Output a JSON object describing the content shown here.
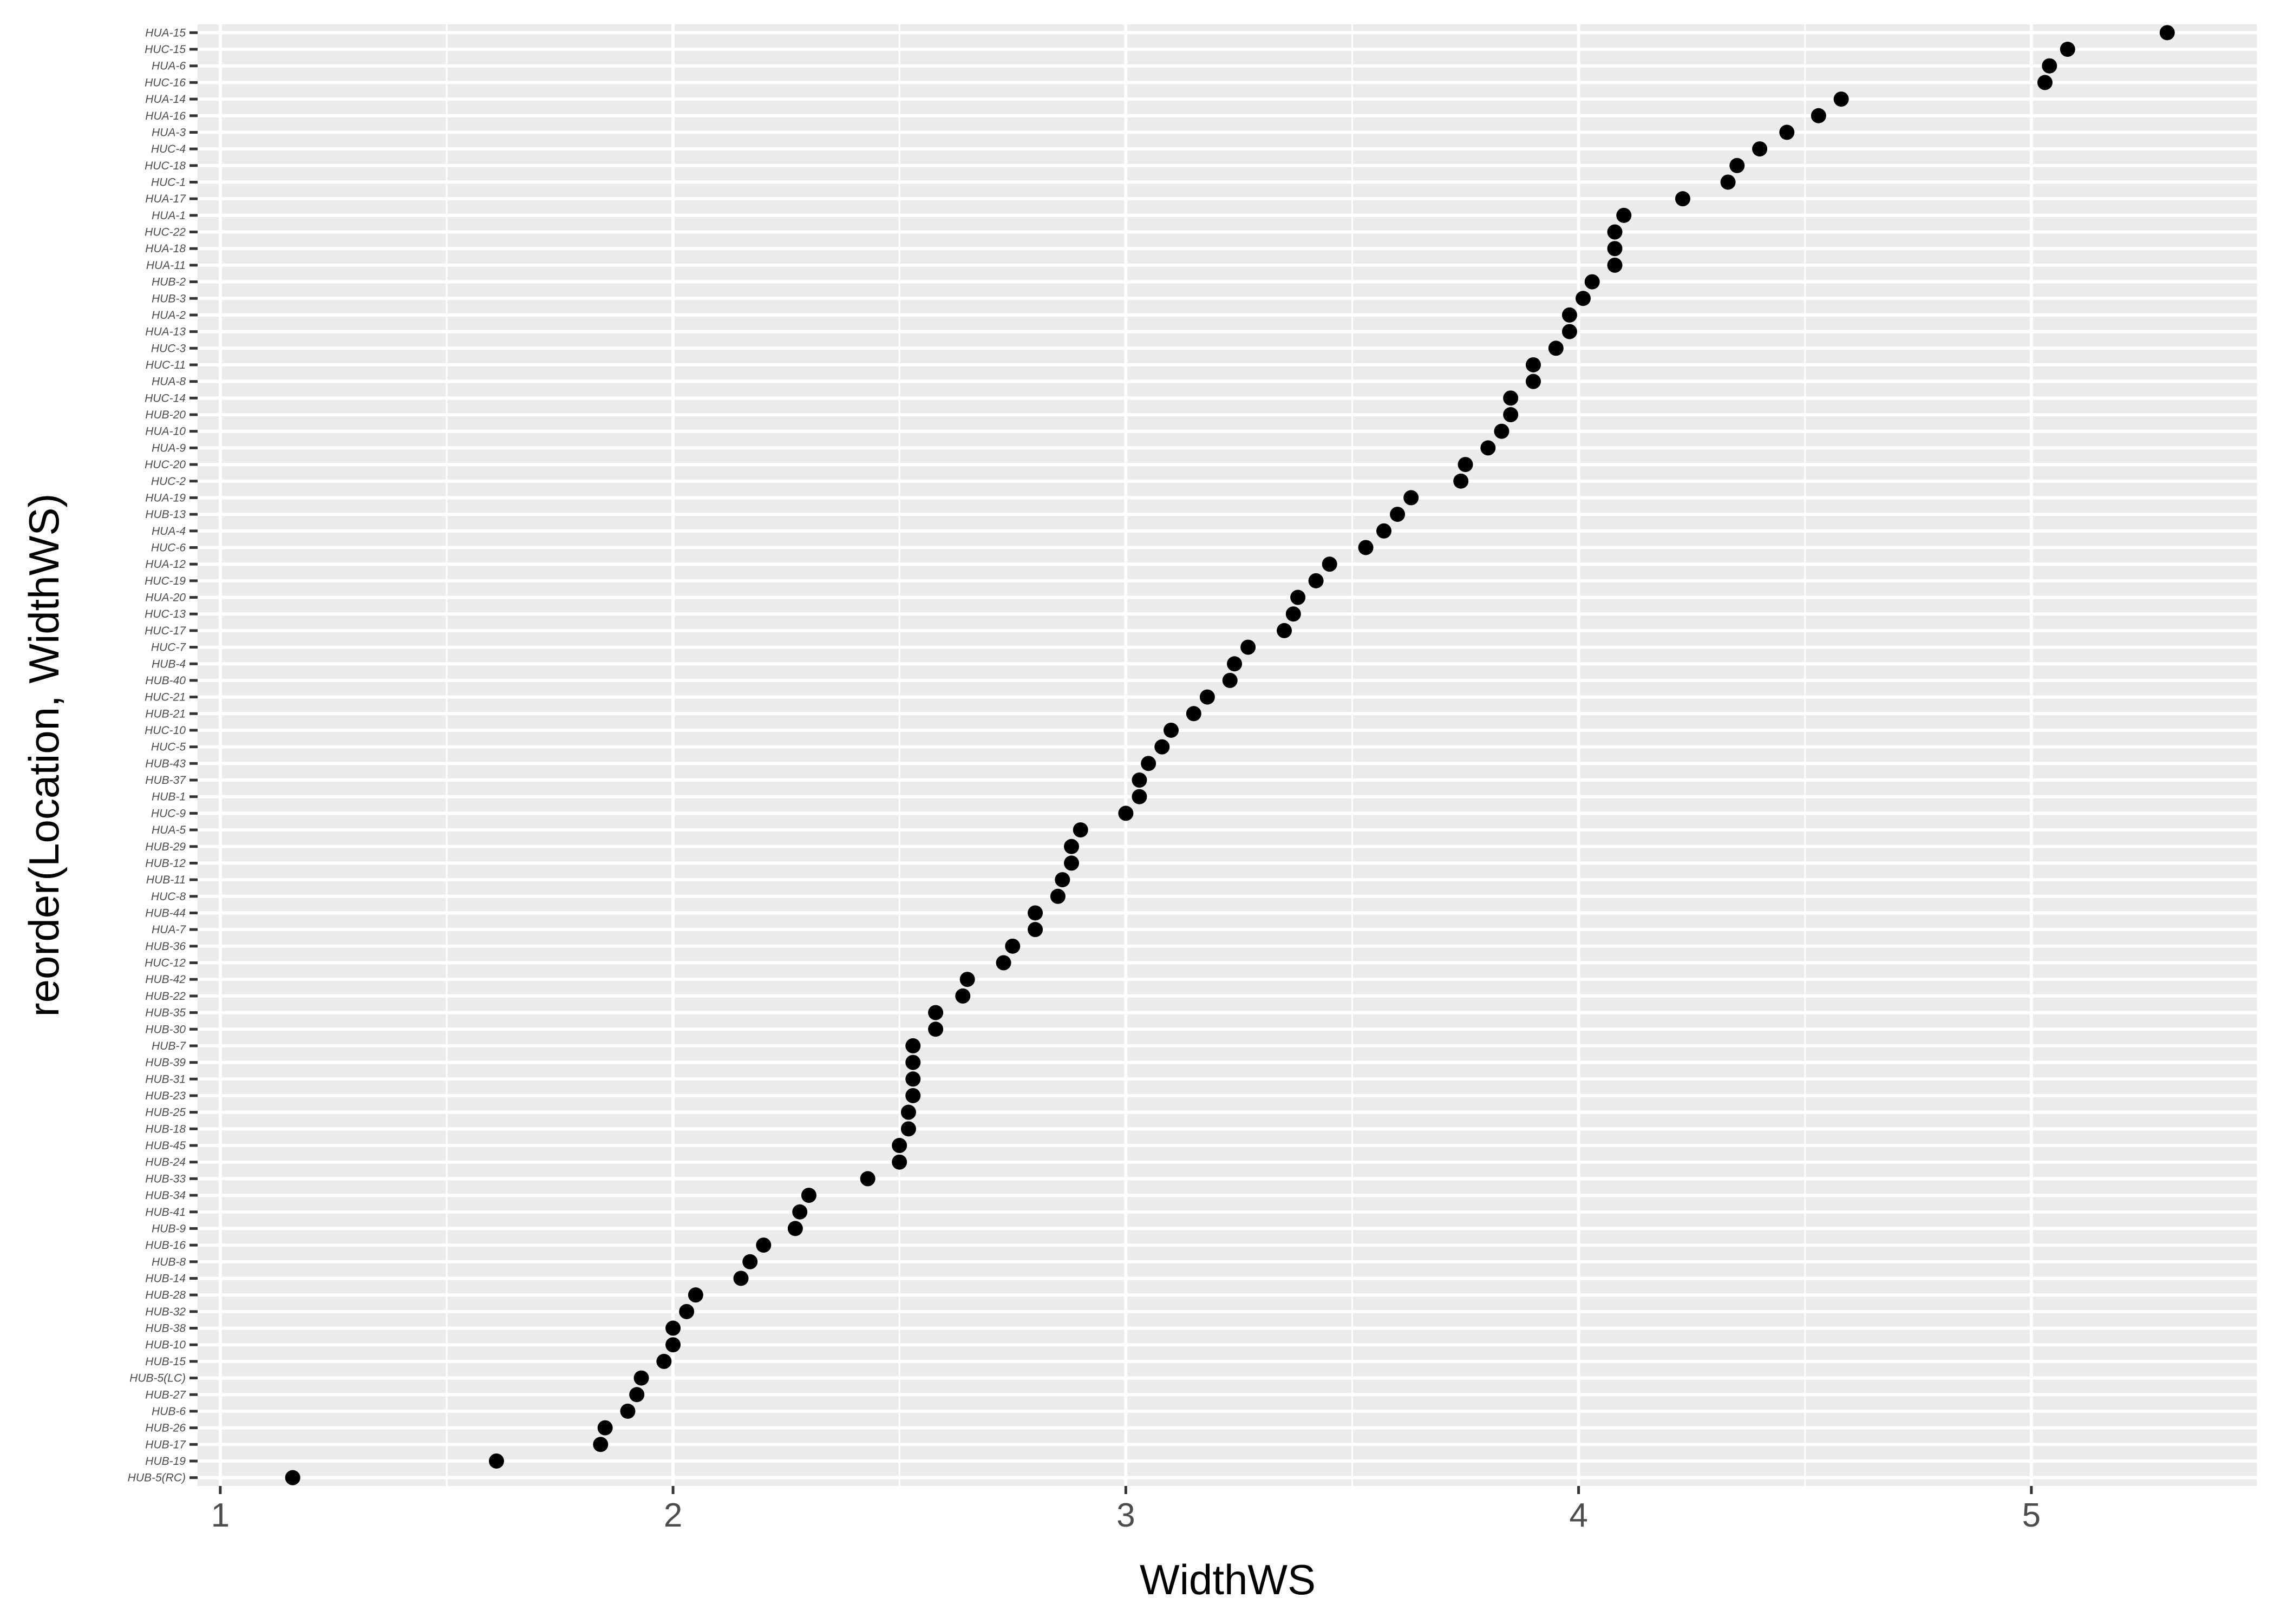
{
  "chart_data": {
    "type": "scatter",
    "xlabel": "WidthWS",
    "ylabel": "reorder(Location, WidthWS)",
    "xlim": [
      0.95,
      5.5
    ],
    "x_ticks": [
      1,
      2,
      3,
      4,
      5
    ],
    "grid": true,
    "colors": {
      "panel": "#ebebeb",
      "grid": "#ffffff",
      "point": "#000000"
    },
    "points": [
      {
        "category": "HUB-5(RC)",
        "value": 1.16
      },
      {
        "category": "HUB-19",
        "value": 1.61
      },
      {
        "category": "HUB-17",
        "value": 1.84
      },
      {
        "category": "HUB-26",
        "value": 1.85
      },
      {
        "category": "HUB-6",
        "value": 1.9
      },
      {
        "category": "HUB-27",
        "value": 1.92
      },
      {
        "category": "HUB-5(LC)",
        "value": 1.93
      },
      {
        "category": "HUB-15",
        "value": 1.98
      },
      {
        "category": "HUB-10",
        "value": 2.0
      },
      {
        "category": "HUB-38",
        "value": 2.0
      },
      {
        "category": "HUB-32",
        "value": 2.03
      },
      {
        "category": "HUB-28",
        "value": 2.05
      },
      {
        "category": "HUB-14",
        "value": 2.15
      },
      {
        "category": "HUB-8",
        "value": 2.17
      },
      {
        "category": "HUB-16",
        "value": 2.2
      },
      {
        "category": "HUB-9",
        "value": 2.27
      },
      {
        "category": "HUB-41",
        "value": 2.28
      },
      {
        "category": "HUB-34",
        "value": 2.3
      },
      {
        "category": "HUB-33",
        "value": 2.43
      },
      {
        "category": "HUB-24",
        "value": 2.5
      },
      {
        "category": "HUB-45",
        "value": 2.5
      },
      {
        "category": "HUB-18",
        "value": 2.52
      },
      {
        "category": "HUB-25",
        "value": 2.52
      },
      {
        "category": "HUB-23",
        "value": 2.53
      },
      {
        "category": "HUB-31",
        "value": 2.53
      },
      {
        "category": "HUB-39",
        "value": 2.53
      },
      {
        "category": "HUB-7",
        "value": 2.53
      },
      {
        "category": "HUB-30",
        "value": 2.58
      },
      {
        "category": "HUB-35",
        "value": 2.58
      },
      {
        "category": "HUB-22",
        "value": 2.64
      },
      {
        "category": "HUB-42",
        "value": 2.65
      },
      {
        "category": "HUC-12",
        "value": 2.73
      },
      {
        "category": "HUB-36",
        "value": 2.75
      },
      {
        "category": "HUA-7",
        "value": 2.8
      },
      {
        "category": "HUB-44",
        "value": 2.8
      },
      {
        "category": "HUC-8",
        "value": 2.85
      },
      {
        "category": "HUB-11",
        "value": 2.86
      },
      {
        "category": "HUB-12",
        "value": 2.88
      },
      {
        "category": "HUB-29",
        "value": 2.88
      },
      {
        "category": "HUA-5",
        "value": 2.9
      },
      {
        "category": "HUC-9",
        "value": 3.0
      },
      {
        "category": "HUB-1",
        "value": 3.03
      },
      {
        "category": "HUB-37",
        "value": 3.03
      },
      {
        "category": "HUB-43",
        "value": 3.05
      },
      {
        "category": "HUC-5",
        "value": 3.08
      },
      {
        "category": "HUC-10",
        "value": 3.1
      },
      {
        "category": "HUB-21",
        "value": 3.15
      },
      {
        "category": "HUC-21",
        "value": 3.18
      },
      {
        "category": "HUB-40",
        "value": 3.23
      },
      {
        "category": "HUB-4",
        "value": 3.24
      },
      {
        "category": "HUC-7",
        "value": 3.27
      },
      {
        "category": "HUC-17",
        "value": 3.35
      },
      {
        "category": "HUC-13",
        "value": 3.37
      },
      {
        "category": "HUA-20",
        "value": 3.38
      },
      {
        "category": "HUC-19",
        "value": 3.42
      },
      {
        "category": "HUA-12",
        "value": 3.45
      },
      {
        "category": "HUC-6",
        "value": 3.53
      },
      {
        "category": "HUA-4",
        "value": 3.57
      },
      {
        "category": "HUB-13",
        "value": 3.6
      },
      {
        "category": "HUA-19",
        "value": 3.63
      },
      {
        "category": "HUC-2",
        "value": 3.74
      },
      {
        "category": "HUC-20",
        "value": 3.75
      },
      {
        "category": "HUA-9",
        "value": 3.8
      },
      {
        "category": "HUA-10",
        "value": 3.83
      },
      {
        "category": "HUB-20",
        "value": 3.85
      },
      {
        "category": "HUC-14",
        "value": 3.85
      },
      {
        "category": "HUA-8",
        "value": 3.9
      },
      {
        "category": "HUC-11",
        "value": 3.9
      },
      {
        "category": "HUC-3",
        "value": 3.95
      },
      {
        "category": "HUA-13",
        "value": 3.98
      },
      {
        "category": "HUA-2",
        "value": 3.98
      },
      {
        "category": "HUB-3",
        "value": 4.01
      },
      {
        "category": "HUB-2",
        "value": 4.03
      },
      {
        "category": "HUA-11",
        "value": 4.08
      },
      {
        "category": "HUA-18",
        "value": 4.08
      },
      {
        "category": "HUC-22",
        "value": 4.08
      },
      {
        "category": "HUA-1",
        "value": 4.1
      },
      {
        "category": "HUA-17",
        "value": 4.23
      },
      {
        "category": "HUC-1",
        "value": 4.33
      },
      {
        "category": "HUC-18",
        "value": 4.35
      },
      {
        "category": "HUC-4",
        "value": 4.4
      },
      {
        "category": "HUA-3",
        "value": 4.46
      },
      {
        "category": "HUA-16",
        "value": 4.53
      },
      {
        "category": "HUA-14",
        "value": 4.58
      },
      {
        "category": "HUC-16",
        "value": 5.03
      },
      {
        "category": "HUA-6",
        "value": 5.04
      },
      {
        "category": "HUC-15",
        "value": 5.08
      },
      {
        "category": "HUA-15",
        "value": 5.3
      }
    ]
  }
}
